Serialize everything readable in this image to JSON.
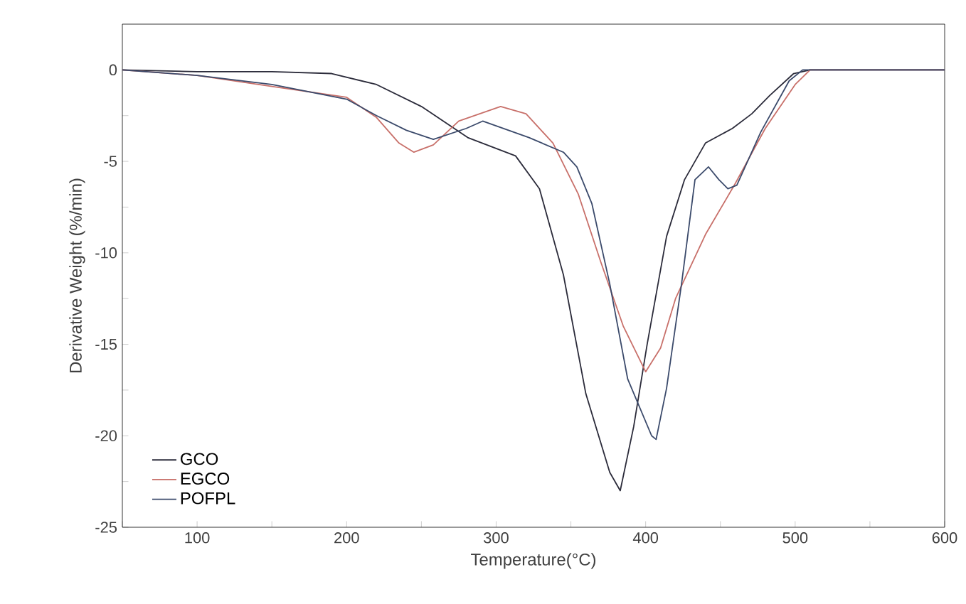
{
  "chart_data": {
    "type": "line",
    "xlabel": "Temperature(°C)",
    "ylabel": "Derivative Weight  (%/min)",
    "xlim": [
      50,
      600
    ],
    "ylim": [
      -25,
      2.5
    ],
    "xticks": [
      {
        "value": 50,
        "label": null
      },
      100,
      {
        "value": 150,
        "label": null
      },
      200,
      {
        "value": 250,
        "label": null
      },
      300,
      {
        "value": 350,
        "label": null
      },
      400,
      {
        "value": 450,
        "label": null
      },
      500,
      {
        "value": 550,
        "label": null
      },
      600
    ],
    "yticks": [
      -25,
      {
        "value": -22.5,
        "label": null
      },
      -20,
      {
        "value": -17.5,
        "label": null
      },
      -15,
      {
        "value": -12.5,
        "label": null
      },
      -10,
      {
        "value": -7.5,
        "label": null
      },
      -5,
      {
        "value": -2.5,
        "label": null
      },
      0
    ],
    "grid": false,
    "legend": "bottom left",
    "marker": "none",
    "line_style": "solid",
    "series": [
      {
        "name": "GCO",
        "color": "#2b2b3a",
        "x": [
          50,
          100,
          150,
          190,
          220,
          250,
          281,
          313,
          329,
          345,
          360,
          376,
          383,
          392,
          401,
          414,
          426,
          440,
          458,
          471,
          483,
          499,
          510,
          550,
          600
        ],
        "values": [
          0,
          -0.1,
          -0.1,
          -0.2,
          -0.8,
          -2,
          -3.7,
          -4.7,
          -6.5,
          -11.2,
          -17.7,
          -22,
          -23,
          -19.5,
          -15,
          -9.1,
          -6,
          -4,
          -3.2,
          -2.4,
          -1.4,
          -0.2,
          0,
          0,
          0
        ]
      },
      {
        "name": "EGCO",
        "color": "#c8706a",
        "x": [
          50,
          100,
          150,
          200,
          220,
          235,
          245,
          258,
          275,
          303,
          320,
          338,
          355,
          370,
          385,
          400,
          410,
          420,
          440,
          460,
          480,
          500,
          510,
          550,
          600
        ],
        "values": [
          0,
          -0.3,
          -0.9,
          -1.5,
          -2.6,
          -4,
          -4.5,
          -4.1,
          -2.8,
          -2,
          -2.4,
          -4,
          -6.8,
          -10.5,
          -14,
          -16.5,
          -15.2,
          -12.5,
          -9,
          -6.2,
          -3.2,
          -0.8,
          0,
          0,
          0
        ]
      },
      {
        "name": "POFPL",
        "color": "#3b4a6b",
        "x": [
          50,
          100,
          150,
          200,
          220,
          240,
          258,
          280,
          291,
          322,
          345,
          354,
          364,
          376,
          388,
          404,
          407,
          414,
          424,
          433,
          442,
          449,
          455,
          461,
          477,
          496,
          505,
          550,
          600
        ],
        "values": [
          0,
          -0.3,
          -0.8,
          -1.6,
          -2.5,
          -3.3,
          -3.8,
          -3.2,
          -2.8,
          -3.7,
          -4.5,
          -5.3,
          -7.3,
          -11.7,
          -16.9,
          -20,
          -20.2,
          -17.4,
          -11.7,
          -6,
          -5.3,
          -6,
          -6.5,
          -6.3,
          -3.4,
          -0.6,
          0,
          0,
          0
        ]
      }
    ]
  }
}
